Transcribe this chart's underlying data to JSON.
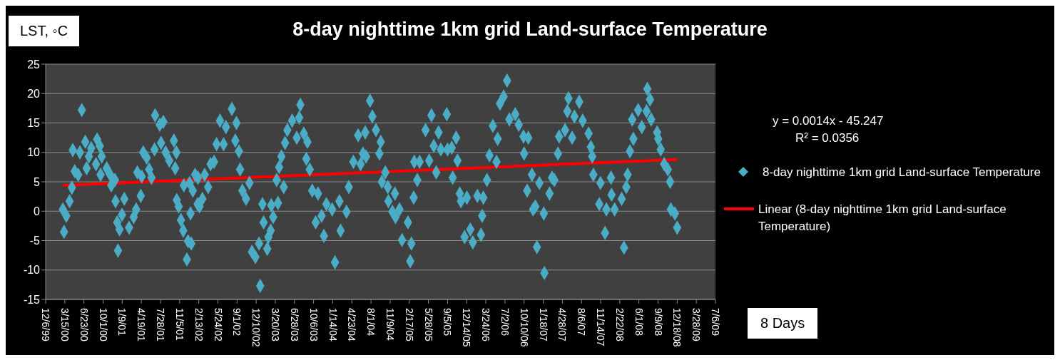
{
  "chart_data": {
    "type": "scatter",
    "title": "8-day nighttime 1km grid Land-surface Temperature",
    "xlabel": "8 Days",
    "ylabel": "LST, ◦C",
    "annotations": [
      "y = 0.0014x - 45.247",
      "R² = 0.0356"
    ],
    "xlim": [
      "1999-12-06",
      "2009-07-06"
    ],
    "xticks": [
      {
        "value": "1999-12-06",
        "label": "12/6/99"
      },
      {
        "value": "2000-03-15",
        "label": "3/15/00"
      },
      {
        "value": "2000-06-23",
        "label": "6/23/00"
      },
      {
        "value": "2000-10-01",
        "label": "10/1/00"
      },
      {
        "value": "2001-01-09",
        "label": "1/9/01"
      },
      {
        "value": "2001-04-19",
        "label": "4/19/01"
      },
      {
        "value": "2001-07-28",
        "label": "7/28/01"
      },
      {
        "value": "2001-11-05",
        "label": "11/5/01"
      },
      {
        "value": "2002-02-13",
        "label": "2/13/02"
      },
      {
        "value": "2002-05-24",
        "label": "5/24/02"
      },
      {
        "value": "2002-09-01",
        "label": "9/1/02"
      },
      {
        "value": "2002-12-10",
        "label": "12/10/02"
      },
      {
        "value": "2003-03-20",
        "label": "3/20/03"
      },
      {
        "value": "2003-06-28",
        "label": "6/28/03"
      },
      {
        "value": "2003-10-06",
        "label": "10/6/03"
      },
      {
        "value": "2004-01-14",
        "label": "1/14/04"
      },
      {
        "value": "2004-04-23",
        "label": "4/23/04"
      },
      {
        "value": "2004-08-01",
        "label": "8/1/04"
      },
      {
        "value": "2004-11-09",
        "label": "11/9/04"
      },
      {
        "value": "2005-02-17",
        "label": "2/17/05"
      },
      {
        "value": "2005-05-28",
        "label": "5/28/05"
      },
      {
        "value": "2005-09-05",
        "label": "9/5/05"
      },
      {
        "value": "2005-12-14",
        "label": "12/14/05"
      },
      {
        "value": "2006-03-24",
        "label": "3/24/06"
      },
      {
        "value": "2006-07-02",
        "label": "7/2/06"
      },
      {
        "value": "2006-10-10",
        "label": "10/10/06"
      },
      {
        "value": "2007-01-18",
        "label": "1/18/07"
      },
      {
        "value": "2007-04-28",
        "label": "4/28/07"
      },
      {
        "value": "2007-08-06",
        "label": "8/6/07"
      },
      {
        "value": "2007-11-14",
        "label": "11/14/07"
      },
      {
        "value": "2008-02-22",
        "label": "2/22/08"
      },
      {
        "value": "2008-06-01",
        "label": "6/1/08"
      },
      {
        "value": "2008-09-09",
        "label": "9/9/08"
      },
      {
        "value": "2008-12-18",
        "label": "12/18/08"
      },
      {
        "value": "2009-03-28",
        "label": "3/28/09"
      },
      {
        "value": "2009-07-06",
        "label": "7/6/09"
      }
    ],
    "ylim": [
      -15,
      25
    ],
    "yticks": [
      -15,
      -10,
      -5,
      0,
      5,
      10,
      15,
      20,
      25
    ],
    "grid": "y",
    "legend": "right",
    "series": [
      {
        "name": "8-day nighttime 1km grid Land-surface Temperature",
        "color": "#4bacc6",
        "marker": "diamond",
        "x": [
          "2000-03-05",
          "2000-03-11",
          "2000-03-23",
          "2000-04-09",
          "2000-04-21",
          "2000-04-26",
          "2000-05-06",
          "2000-05-24",
          "2000-06-02",
          "2000-06-12",
          "2000-06-30",
          "2000-07-07",
          "2000-07-19",
          "2000-07-31",
          "2000-08-25",
          "2000-08-31",
          "2000-09-14",
          "2000-09-18",
          "2000-09-24",
          "2000-10-20",
          "2000-11-07",
          "2000-11-13",
          "2000-12-02",
          "2000-12-05",
          "2000-12-14",
          "2000-12-18",
          "2000-12-26",
          "2001-01-08",
          "2001-01-20",
          "2001-02-14",
          "2001-03-10",
          "2001-03-23",
          "2001-03-29",
          "2001-04-16",
          "2001-04-21",
          "2001-04-29",
          "2001-05-17",
          "2001-05-30",
          "2001-06-11",
          "2001-06-27",
          "2001-06-30",
          "2001-07-24",
          "2001-07-31",
          "2001-08-12",
          "2001-08-24",
          "2001-09-12",
          "2001-10-06",
          "2001-10-13",
          "2001-10-19",
          "2001-10-21",
          "2001-10-31",
          "2001-11-12",
          "2001-11-24",
          "2001-11-27",
          "2001-12-13",
          "2001-12-19",
          "2001-12-27",
          "2002-01-01",
          "2002-01-05",
          "2002-01-13",
          "2002-01-25",
          "2002-02-07",
          "2002-02-09",
          "2002-02-17",
          "2002-03-04",
          "2002-03-16",
          "2002-04-03",
          "2002-04-16",
          "2002-05-04",
          "2002-05-17",
          "2002-06-04",
          "2002-06-23",
          "2002-07-05",
          "2002-08-05",
          "2002-08-23",
          "2002-08-29",
          "2002-09-11",
          "2002-09-17",
          "2002-09-29",
          "2002-10-18",
          "2002-11-05",
          "2002-11-18",
          "2002-12-06",
          "2002-12-25",
          "2002-12-31",
          "2003-01-12",
          "2003-01-18",
          "2003-02-06",
          "2003-02-12",
          "2003-02-24",
          "2003-02-27",
          "2003-03-09",
          "2003-03-27",
          "2003-04-03",
          "2003-04-09",
          "2003-04-21",
          "2003-05-03",
          "2003-05-10",
          "2003-05-22",
          "2003-06-16",
          "2003-07-10",
          "2003-07-23",
          "2003-07-29",
          "2003-08-16",
          "2003-08-29",
          "2003-09-04",
          "2003-09-16",
          "2003-09-29",
          "2003-10-17",
          "2003-10-29",
          "2003-11-17",
          "2003-11-29",
          "2003-12-12",
          "2004-01-11",
          "2004-01-26",
          "2004-02-18",
          "2004-02-24",
          "2004-03-26",
          "2004-04-07",
          "2004-05-01",
          "2004-05-26",
          "2004-06-08",
          "2004-06-20",
          "2004-07-02",
          "2004-07-06",
          "2004-07-27",
          "2004-08-08",
          "2004-08-27",
          "2004-09-14",
          "2004-09-21",
          "2004-09-27",
          "2004-10-15",
          "2004-10-28",
          "2004-10-31",
          "2004-11-21",
          "2004-12-04",
          "2004-12-07",
          "2004-12-28",
          "2005-01-10",
          "2005-02-10",
          "2005-02-22",
          "2005-02-28",
          "2005-03-12",
          "2005-03-15",
          "2005-03-31",
          "2005-04-12",
          "2005-05-13",
          "2005-06-01",
          "2005-06-13",
          "2005-06-25",
          "2005-07-08",
          "2005-07-20",
          "2005-08-01",
          "2005-09-01",
          "2005-09-05",
          "2005-09-27",
          "2005-10-02",
          "2005-10-20",
          "2005-10-27",
          "2005-11-08",
          "2005-11-14",
          "2005-12-03",
          "2005-12-15",
          "2006-01-02",
          "2006-01-15",
          "2006-02-08",
          "2006-02-27",
          "2006-03-05",
          "2006-03-11",
          "2006-03-30",
          "2006-04-12",
          "2006-04-30",
          "2006-05-19",
          "2006-05-25",
          "2006-06-06",
          "2006-06-25",
          "2006-07-13",
          "2006-07-25",
          "2006-08-25",
          "2006-09-12",
          "2006-10-07",
          "2006-10-10",
          "2006-10-26",
          "2006-11-01",
          "2006-11-20",
          "2006-11-26",
          "2006-12-08",
          "2006-12-16",
          "2006-12-29",
          "2007-01-21",
          "2007-01-24",
          "2007-02-20",
          "2007-03-05",
          "2007-03-17",
          "2007-04-05",
          "2007-04-11",
          "2007-05-12",
          "2007-05-24",
          "2007-05-30",
          "2007-06-18",
          "2007-06-30",
          "2007-07-25",
          "2007-08-12",
          "2007-09-12",
          "2007-09-24",
          "2007-10-01",
          "2007-10-07",
          "2007-11-07",
          "2007-11-13",
          "2007-12-07",
          "2007-12-14",
          "2008-01-07",
          "2008-01-10",
          "2008-01-26",
          "2008-03-03",
          "2008-03-15",
          "2008-03-27",
          "2008-04-03",
          "2008-04-15",
          "2008-04-27",
          "2008-05-03",
          "2008-05-28",
          "2008-06-16",
          "2008-07-11",
          "2008-07-15",
          "2008-07-29",
          "2008-08-04",
          "2008-09-04",
          "2008-09-10",
          "2008-09-23",
          "2008-10-11",
          "2008-10-30",
          "2008-11-11",
          "2008-11-15",
          "2008-12-06",
          "2008-12-18"
        ],
        "values": [
          0.3,
          -3.5,
          -0.8,
          1.7,
          4,
          10.4,
          6.8,
          6.2,
          10,
          17.2,
          11.8,
          7.3,
          9.3,
          10.7,
          8,
          12.2,
          11.1,
          6.2,
          9.3,
          7.3,
          6.2,
          4.4,
          5.3,
          1.7,
          -1.9,
          -6.7,
          -3.1,
          -0.6,
          2.1,
          -2.8,
          -1,
          0.3,
          6.6,
          2.6,
          5.9,
          10,
          9.1,
          7.1,
          5.7,
          10.5,
          16.3,
          14.7,
          11.6,
          15.2,
          10,
          8.6,
          12,
          7.3,
          10,
          1.9,
          0.8,
          -1.5,
          -3.3,
          4.4,
          -8.2,
          -5.1,
          4.8,
          -0.4,
          -5.5,
          3.5,
          6.2,
          1.2,
          5.7,
          0.8,
          2.1,
          6.2,
          4.1,
          8,
          8.4,
          11.4,
          15.4,
          11.4,
          14.3,
          17.4,
          12,
          15,
          10.2,
          7.1,
          3.5,
          2.1,
          4.8,
          -6.9,
          -7.8,
          -5.5,
          -12.7,
          1.2,
          -1.9,
          -6.4,
          -4.4,
          -3.3,
          1,
          -1,
          5.3,
          1.4,
          7.5,
          9.3,
          4.1,
          11.6,
          13.8,
          15.4,
          12.5,
          15.9,
          18.1,
          13.2,
          8.9,
          11.8,
          7.1,
          3.5,
          -1.9,
          3,
          -0.8,
          -4.2,
          1.2,
          0.3,
          -8.7,
          1.7,
          -3.3,
          -0.1,
          4.1,
          8.4,
          12.9,
          8,
          9.8,
          13.4,
          9.3,
          18.8,
          16.1,
          13.8,
          9.8,
          11.8,
          5,
          6.6,
          4.1,
          1.7,
          -0.1,
          3,
          -1,
          0.3,
          -4.9,
          -1.9,
          -8.5,
          -5.5,
          2.3,
          8.4,
          5.3,
          8.4,
          13.8,
          8.6,
          16.3,
          11.1,
          6.6,
          13.4,
          10.5,
          16.5,
          10.5,
          10.8,
          5.7,
          12.5,
          8.6,
          3,
          1.7,
          -4.4,
          2.3,
          -3.1,
          -5.3,
          2.6,
          -4,
          -0.8,
          2.3,
          5.3,
          9.5,
          14.5,
          8.4,
          12.3,
          18.3,
          19.5,
          22.2,
          15.6,
          16.5,
          14.7,
          12.7,
          9.8,
          3.5,
          12.5,
          6.2,
          0.3,
          0.8,
          -6.1,
          4.8,
          -0.4,
          -10.5,
          3,
          5.7,
          5.3,
          9.8,
          12.7,
          13.8,
          17,
          19.2,
          12.5,
          16.1,
          18.6,
          15.4,
          13.2,
          10.9,
          9.3,
          6.2,
          1.2,
          4.8,
          -3.7,
          0.3,
          5.7,
          2.8,
          0.3,
          2.1,
          -6.2,
          4.1,
          6.2,
          10.2,
          15.6,
          12.3,
          17.2,
          14.3,
          17,
          20.8,
          19,
          15.6,
          13.4,
          12.3,
          10.5,
          8,
          7.1,
          5,
          0.3,
          -0.4,
          -2.8
        ]
      },
      {
        "name": "Linear (8-day nighttime 1km grid Land-surface Temperature)",
        "type": "line",
        "color": "#ff0000",
        "marker": "none",
        "line_style": "solid",
        "x": [
          "2000-03-05",
          "2008-12-18"
        ],
        "values": [
          4.4,
          8.8
        ]
      }
    ]
  }
}
